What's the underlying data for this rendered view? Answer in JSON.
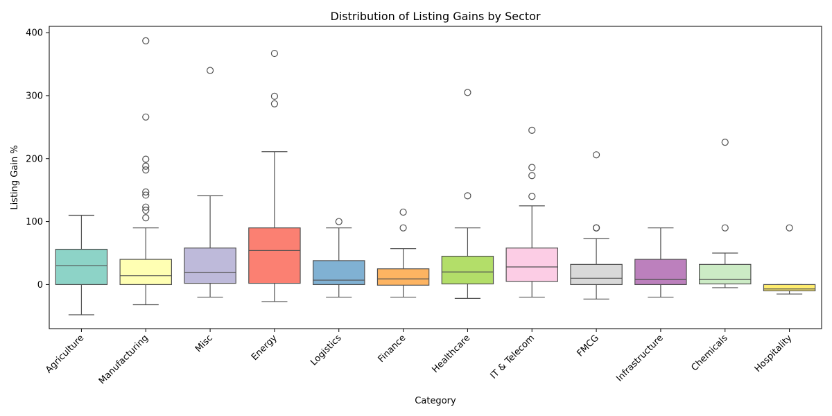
{
  "chart_data": {
    "type": "box",
    "title": "Distribution of Listing Gains by Sector",
    "xlabel": "Category",
    "ylabel": "Listing Gain %",
    "ylim": [
      -70,
      410
    ],
    "yticks": [
      0,
      100,
      200,
      300,
      400
    ],
    "grid": false,
    "legend": "none",
    "categories": [
      "Agriculture",
      "Manufacturing",
      "Misc",
      "Energy",
      "Logistics",
      "Finance",
      "Healthcare",
      "IT & Telecom",
      "FMCG",
      "Infrastructure",
      "Chemicals",
      "Hospitality"
    ],
    "series": [
      {
        "category": "Agriculture",
        "whisker_low": -48,
        "q1": 0,
        "median": 30,
        "q3": 56,
        "whisker_high": 110,
        "outliers": [],
        "color": "#8dd3c7"
      },
      {
        "category": "Manufacturing",
        "whisker_low": -32,
        "q1": 0,
        "median": 14,
        "q3": 40,
        "whisker_high": 90,
        "outliers": [
          387,
          266,
          199,
          188,
          182,
          147,
          142,
          123,
          118,
          106
        ],
        "color": "#ffffb3"
      },
      {
        "category": "Misc",
        "whisker_low": -20,
        "q1": 2,
        "median": 19,
        "q3": 58,
        "whisker_high": 141,
        "outliers": [
          340
        ],
        "color": "#bebada"
      },
      {
        "category": "Energy",
        "whisker_low": -27,
        "q1": 2,
        "median": 54,
        "q3": 90,
        "whisker_high": 211,
        "outliers": [
          367,
          299,
          287
        ],
        "color": "#fb8072"
      },
      {
        "category": "Logistics",
        "whisker_low": -20,
        "q1": 0,
        "median": 7,
        "q3": 38,
        "whisker_high": 90,
        "outliers": [
          100
        ],
        "color": "#80b1d3"
      },
      {
        "category": "Finance",
        "whisker_low": -20,
        "q1": -1,
        "median": 9,
        "q3": 25,
        "whisker_high": 57,
        "outliers": [
          115,
          90
        ],
        "color": "#fdb462"
      },
      {
        "category": "Healthcare",
        "whisker_low": -22,
        "q1": 1,
        "median": 20,
        "q3": 45,
        "whisker_high": 90,
        "outliers": [
          305,
          141
        ],
        "color": "#b3de69"
      },
      {
        "category": "IT & Telecom",
        "whisker_low": -20,
        "q1": 5,
        "median": 28,
        "q3": 58,
        "whisker_high": 125,
        "outliers": [
          245,
          186,
          173,
          140
        ],
        "color": "#fccde5"
      },
      {
        "category": "FMCG",
        "whisker_low": -23,
        "q1": 0,
        "median": 10,
        "q3": 32,
        "whisker_high": 73,
        "outliers": [
          206,
          90,
          90,
          90
        ],
        "color": "#d9d9d9"
      },
      {
        "category": "Infrastructure",
        "whisker_low": -20,
        "q1": 0,
        "median": 8,
        "q3": 40,
        "whisker_high": 90,
        "outliers": [],
        "color": "#bc80bd"
      },
      {
        "category": "Chemicals",
        "whisker_low": -5,
        "q1": 1,
        "median": 8,
        "q3": 32,
        "whisker_high": 50,
        "outliers": [
          226,
          90
        ],
        "color": "#ccebc5"
      },
      {
        "category": "Hospitality",
        "whisker_low": -15,
        "q1": -10,
        "median": -7,
        "q3": 0,
        "whisker_high": 0,
        "outliers": [
          90
        ],
        "color": "#ffed6f"
      }
    ]
  }
}
